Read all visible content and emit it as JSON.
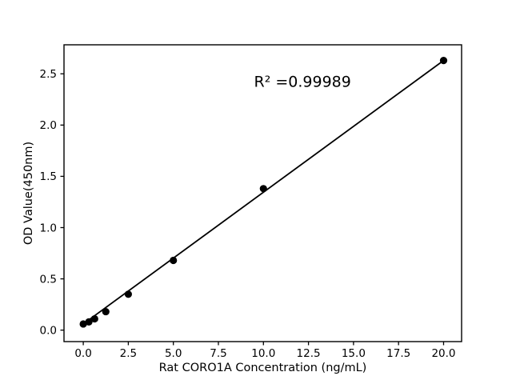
{
  "figure": {
    "background": "#ffffff",
    "frame_color": "#000000"
  },
  "chart_data": {
    "type": "scatter",
    "title": "",
    "xlabel": "Rat CORO1A Concentration (ng/mL)",
    "ylabel": "OD Value(450nm)",
    "annotation": "R² =0.99989",
    "x": [
      0,
      0.31,
      0.63,
      1.25,
      2.5,
      5,
      10,
      20
    ],
    "y": [
      0.06,
      0.08,
      0.11,
      0.18,
      0.35,
      0.68,
      1.38,
      2.63
    ],
    "trendline": {
      "x_start": 0,
      "y_start": 0.06,
      "x_end": 20,
      "y_end": 2.63
    },
    "xlim": [
      -1.07,
      21.0
    ],
    "ylim": [
      -0.112,
      2.783
    ],
    "xticks": {
      "values": [
        0,
        2.5,
        5,
        7.5,
        10,
        12.5,
        15,
        17.5,
        20
      ],
      "labels": [
        "0.0",
        "2.5",
        "5.0",
        "7.5",
        "10.0",
        "12.5",
        "15.0",
        "17.5",
        "20.0"
      ]
    },
    "yticks": {
      "values": [
        0,
        0.5,
        1,
        1.5,
        2,
        2.5
      ],
      "labels": [
        "0.0",
        "0.5",
        "1.0",
        "1.5",
        "2.0",
        "2.5"
      ]
    },
    "grid": false,
    "legend": null,
    "marker_color": "#000000",
    "line_color": "#000000",
    "annotation_color": "#000000"
  }
}
